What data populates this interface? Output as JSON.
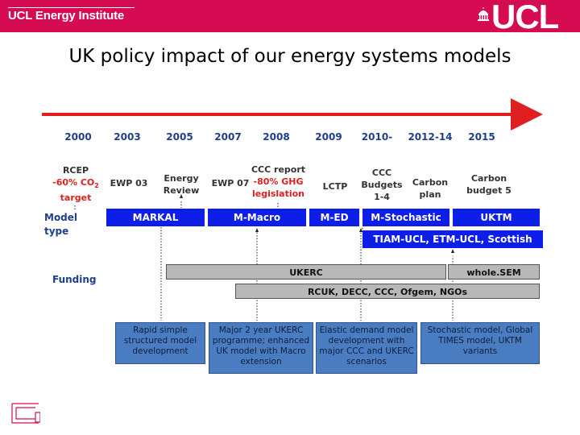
{
  "header": {
    "brand": "UCL Energy Institute",
    "logo": "UCL",
    "accent_color": "#d50c52"
  },
  "title": "UK policy impact of our energy systems models",
  "timeline": {
    "years": [
      "2000",
      "2003",
      "2005",
      "2007",
      "2008",
      "2009",
      "2010-",
      "2012-14",
      "2015"
    ],
    "arrow_color": "#e02020"
  },
  "events": {
    "rcep": [
      "RCEP",
      "-60% CO",
      "2",
      "target"
    ],
    "ewp03": "EWP 03",
    "energy_review": [
      "Energy",
      "Review"
    ],
    "ewp07": "EWP 07",
    "ccc_report": [
      "CCC report",
      "-80% GHG",
      "legislation"
    ],
    "lctp": "LCTP",
    "ccc_budgets": [
      "CCC",
      "Budgets",
      "1-4"
    ],
    "carbon_plan": [
      "Carbon",
      "plan"
    ],
    "carbon_budget5": [
      "Carbon",
      "budget 5"
    ]
  },
  "rows": {
    "model_type": [
      "Model",
      "type"
    ],
    "funding": "Funding"
  },
  "models": {
    "markal": "MARKAL",
    "m_macro": "M-Macro",
    "m_ed": "M-ED",
    "m_stochastic": "M-Stochastic",
    "uktm": "UKTM",
    "tiam": "TIAM-UCL, ETM-UCL, Scottish TIMES",
    "model_color": "#0d1ee8"
  },
  "funding": {
    "ukerc": "UKERC",
    "whole_sem": "whole.SEM",
    "rcuk": "RCUK, DECC, CCC, Ofgem, NGOs"
  },
  "descriptions": [
    [
      "Rapid simple",
      "structured model",
      "development"
    ],
    [
      "Major 2 year UKERC",
      "programme; enhanced",
      "UK model with Macro",
      "extension"
    ],
    [
      "Elastic demand model",
      "development with",
      "major CCC and UKERC",
      "scenarios"
    ],
    [
      "Stochastic model, Global",
      "TIMES model, UKTM",
      "variants"
    ]
  ]
}
